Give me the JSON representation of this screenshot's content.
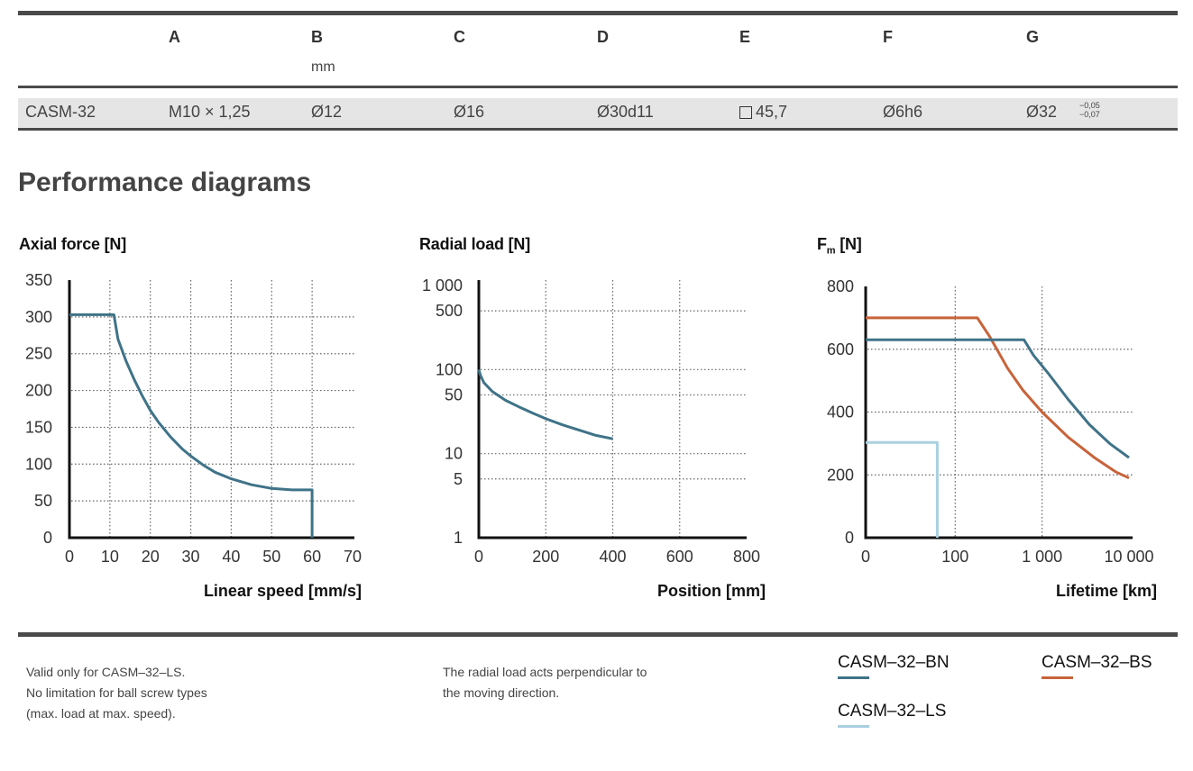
{
  "table": {
    "columns": [
      {
        "key": "model",
        "label": "",
        "unit": ""
      },
      {
        "key": "A",
        "label": "A",
        "unit": ""
      },
      {
        "key": "B",
        "label": "B",
        "unit": "mm"
      },
      {
        "key": "C",
        "label": "C",
        "unit": ""
      },
      {
        "key": "D",
        "label": "D",
        "unit": ""
      },
      {
        "key": "E",
        "label": "E",
        "unit": ""
      },
      {
        "key": "F",
        "label": "F",
        "unit": ""
      },
      {
        "key": "G",
        "label": "G",
        "unit": ""
      }
    ],
    "rows": [
      {
        "cells": [
          "CASM-32",
          "M10 × 1,25",
          "Ø12",
          "Ø16",
          "Ø30d11",
          "45,7",
          "Ø6h6",
          "Ø32"
        ],
        "E_prefix_icon": "square-icon",
        "G_tolerance_upper": "−0,05",
        "G_tolerance_lower": "−0,07"
      }
    ]
  },
  "section_title": "Performance diagrams",
  "colors": {
    "BN": "#3f7388",
    "BS": "#c8633a",
    "LS": "#a9d0e0",
    "axis": "#111111",
    "rule": "#4a4a4a"
  },
  "chart_data": [
    {
      "type": "line",
      "title": "Axial force [N]",
      "xlabel": "Linear speed [mm/s]",
      "ylabel": "Axial force [N]",
      "xlim": [
        0,
        70
      ],
      "ylim": [
        0,
        350
      ],
      "xscale": "linear",
      "yscale": "linear",
      "xticks": [
        0,
        10,
        20,
        30,
        40,
        50,
        60,
        70
      ],
      "xtick_labels": [
        "0",
        "10",
        "20",
        "30",
        "40",
        "50",
        "60",
        "70"
      ],
      "yticks": [
        0,
        50,
        100,
        150,
        200,
        250,
        300,
        350
      ],
      "ytick_labels": [
        "0",
        "50",
        "100",
        "150",
        "200",
        "250",
        "300",
        "350"
      ],
      "grid": true,
      "series": [
        {
          "name": "CASM-32-LS",
          "color_key": "BN",
          "x": [
            0,
            11,
            12,
            14,
            16,
            18,
            20,
            22,
            25,
            28,
            30,
            33,
            36,
            40,
            45,
            50,
            55,
            60,
            60
          ],
          "y": [
            303,
            303,
            270,
            240,
            215,
            193,
            173,
            157,
            137,
            120,
            111,
            99,
            89,
            80,
            72,
            67,
            65,
            65,
            0
          ]
        }
      ]
    },
    {
      "type": "line",
      "title": "Radial load [N]",
      "xlabel": "Position [mm]",
      "ylabel": "Radial load [N]",
      "xlim": [
        0,
        800
      ],
      "ylim": [
        1,
        1000
      ],
      "xscale": "linear",
      "yscale": "log",
      "xticks": [
        0,
        200,
        400,
        600,
        800
      ],
      "xtick_labels": [
        "0",
        "200",
        "400",
        "600",
        "800"
      ],
      "yticks": [
        1,
        5,
        10,
        50,
        100,
        500,
        1000
      ],
      "ytick_labels": [
        "1",
        "5",
        "10",
        "50",
        "100",
        "500",
        "1 000"
      ],
      "ygrid": [
        5,
        10,
        50,
        100,
        500
      ],
      "grid": true,
      "series": [
        {
          "name": "CASM-32",
          "color_key": "BN",
          "x": [
            0,
            5,
            15,
            40,
            80,
            120,
            160,
            200,
            250,
            300,
            350,
            400
          ],
          "y": [
            100,
            85,
            70,
            55,
            43,
            36,
            30.5,
            26,
            22,
            19,
            16.5,
            15
          ]
        }
      ]
    },
    {
      "type": "line",
      "title": "Fm [N]",
      "title_main": "F",
      "title_sub": "m",
      "title_unit": " [N]",
      "xlabel": "Lifetime [km]",
      "ylabel": "Fm [N]",
      "xlim": [
        0,
        10000
      ],
      "ylim": [
        0,
        800
      ],
      "xscale": "log-with-zero",
      "yscale": "linear",
      "xticks": [
        0,
        100,
        1000,
        10000
      ],
      "xtick_labels": [
        "0",
        "100",
        "1 000",
        "10 000"
      ],
      "yticks": [
        0,
        200,
        400,
        600,
        800
      ],
      "ytick_labels": [
        "0",
        "200",
        "400",
        "600",
        "800"
      ],
      "grid": true,
      "series": [
        {
          "name": "CASM-32-BS",
          "color_key": "BS",
          "x": [
            0,
            180,
            250,
            400,
            600,
            1000,
            2000,
            4000,
            7000,
            10000
          ],
          "y": [
            700,
            700,
            640,
            540,
            470,
            400,
            320,
            255,
            210,
            190
          ]
        },
        {
          "name": "CASM-32-BN",
          "color_key": "BN",
          "x": [
            0,
            620,
            800,
            1200,
            2000,
            3500,
            6000,
            10000
          ],
          "y": [
            630,
            630,
            580,
            520,
            440,
            360,
            300,
            255
          ]
        },
        {
          "name": "CASM-32-LS",
          "color_key": "LS",
          "x": [
            0,
            80,
            80
          ],
          "y": [
            303,
            303,
            0
          ]
        }
      ]
    }
  ],
  "notes": {
    "axial": [
      "Valid only for CASM–32–LS.",
      "No limitation for ball screw types",
      "(max. load at max. speed)."
    ],
    "radial": [
      "The radial load acts perpendicular to",
      "the moving direction."
    ]
  },
  "legend": [
    {
      "label": "CASM–32–BN",
      "color_key": "BN"
    },
    {
      "label": "CASM–32–BS",
      "color_key": "BS"
    },
    {
      "label": "CASM–32–LS",
      "color_key": "LS"
    }
  ]
}
